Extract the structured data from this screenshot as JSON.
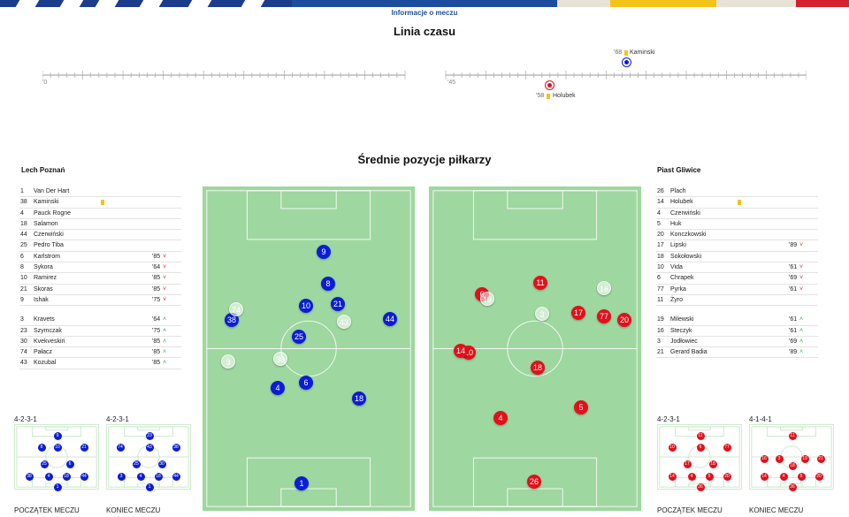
{
  "header": {
    "info_link": "Informacje o meczu"
  },
  "timeline": {
    "title": "Linia czasu",
    "half1_start": "'0",
    "half2_start": "'45",
    "events": [
      {
        "minute": "'68",
        "player": "Kaminski",
        "team": "Lech Poznań",
        "type": "yellow-card"
      },
      {
        "minute": "'58",
        "player": "Holubek",
        "team": "Piast Gliwice",
        "type": "yellow-card"
      }
    ]
  },
  "positions_title": "Średnie pozycje piłkarzy",
  "home": {
    "name": "Lech Poznań",
    "color": "#0b1dd6",
    "starters": [
      {
        "num": "1",
        "name": "Van Der Hart",
        "min": "",
        "card": false
      },
      {
        "num": "38",
        "name": "Kaminski",
        "min": "",
        "card": true
      },
      {
        "num": "4",
        "name": "Pauck Rogne",
        "min": "",
        "card": false
      },
      {
        "num": "18",
        "name": "Salamon",
        "min": "",
        "card": false
      },
      {
        "num": "44",
        "name": "Czerwiński",
        "min": "",
        "card": false
      },
      {
        "num": "25",
        "name": "Pedro Tiba",
        "min": "",
        "card": false
      },
      {
        "num": "6",
        "name": "Karlstrom",
        "min": "'85",
        "card": false
      },
      {
        "num": "8",
        "name": "Sykora",
        "min": "'64",
        "card": false
      },
      {
        "num": "10",
        "name": "Ramirez",
        "min": "'85",
        "card": false
      },
      {
        "num": "21",
        "name": "Skoras",
        "min": "'85",
        "card": false
      },
      {
        "num": "9",
        "name": "Ishak",
        "min": "'75",
        "card": false
      }
    ],
    "subs": [
      {
        "num": "3",
        "name": "Kravets",
        "min": "'64"
      },
      {
        "num": "23",
        "name": "Szymczak",
        "min": "'75"
      },
      {
        "num": "30",
        "name": "Kvekveskiri",
        "min": "'85"
      },
      {
        "num": "74",
        "name": "Pałacz",
        "min": "'85"
      },
      {
        "num": "43",
        "name": "Kozubal",
        "min": "'85"
      }
    ],
    "formation_start": "4-2-3-1",
    "formation_end": "4-2-3-1",
    "start_label": "POCZĄTEK MECZU",
    "end_label": "KONIEC MECZU"
  },
  "away": {
    "name": "Piast Gliwice",
    "color": "#e3101a",
    "starters": [
      {
        "num": "26",
        "name": "Plach",
        "min": "",
        "card": false
      },
      {
        "num": "14",
        "name": "Holubek",
        "min": "",
        "card": true
      },
      {
        "num": "4",
        "name": "Czerwiński",
        "min": "",
        "card": false
      },
      {
        "num": "5",
        "name": "Huk",
        "min": "",
        "card": false
      },
      {
        "num": "20",
        "name": "Konczkowski",
        "min": "",
        "card": false
      },
      {
        "num": "17",
        "name": "Lipski",
        "min": "'89",
        "card": false
      },
      {
        "num": "18",
        "name": "Sokołowski",
        "min": "",
        "card": false
      },
      {
        "num": "10",
        "name": "Vida",
        "min": "'61",
        "card": false
      },
      {
        "num": "6",
        "name": "Chrapek",
        "min": "'69",
        "card": false
      },
      {
        "num": "77",
        "name": "Pyrka",
        "min": "'61",
        "card": false
      },
      {
        "num": "11",
        "name": "Żyro",
        "min": "",
        "card": false
      }
    ],
    "subs": [
      {
        "num": "19",
        "name": "Milewski",
        "min": "'61"
      },
      {
        "num": "16",
        "name": "Steczyk",
        "min": "'61"
      },
      {
        "num": "3",
        "name": "Jodłowiec",
        "min": "'69"
      },
      {
        "num": "21",
        "name": "Gerard Badia",
        "min": "'89"
      }
    ],
    "formation_start": "4-2-3-1",
    "formation_end": "4-1-4-1",
    "start_label": "POCZĄTEK MECZU",
    "end_label": "KONIEC MECZU"
  },
  "home_pitch_players": [
    {
      "num": "1",
      "sub": false
    },
    {
      "num": "4",
      "sub": false
    },
    {
      "num": "6",
      "sub": false
    },
    {
      "num": "18",
      "sub": false
    },
    {
      "num": "25",
      "sub": false
    },
    {
      "num": "38",
      "sub": false
    },
    {
      "num": "10",
      "sub": false
    },
    {
      "num": "21",
      "sub": false
    },
    {
      "num": "8",
      "sub": false
    },
    {
      "num": "9",
      "sub": false
    },
    {
      "num": "44",
      "sub": false
    },
    {
      "num": "74",
      "sub": true
    },
    {
      "num": "43",
      "sub": true
    },
    {
      "num": "30",
      "sub": true
    },
    {
      "num": "3",
      "sub": true
    }
  ],
  "away_pitch_players": [
    {
      "num": "26",
      "sub": false
    },
    {
      "num": "4",
      "sub": false
    },
    {
      "num": "5",
      "sub": false
    },
    {
      "num": "18",
      "sub": false
    },
    {
      "num": "10",
      "sub": false
    },
    {
      "num": "14",
      "sub": false
    },
    {
      "num": "17",
      "sub": false
    },
    {
      "num": "77",
      "sub": false
    },
    {
      "num": "20",
      "sub": false
    },
    {
      "num": "6",
      "sub": false
    },
    {
      "num": "11",
      "sub": false
    },
    {
      "num": "3",
      "sub": true
    },
    {
      "num": "16",
      "sub": true
    },
    {
      "num": "19",
      "sub": true
    }
  ]
}
